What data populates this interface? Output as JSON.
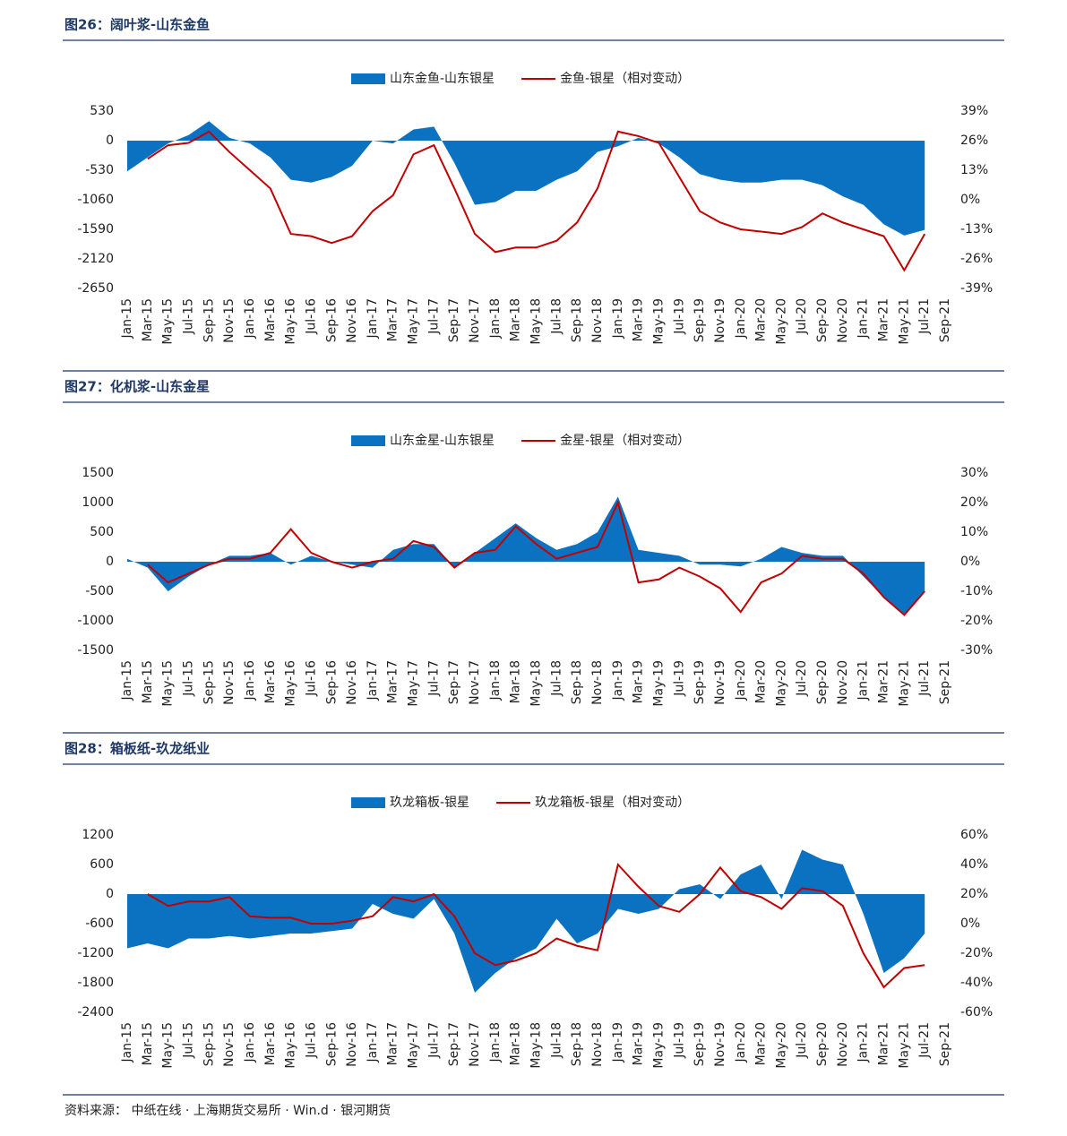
{
  "chart_data": [
    {
      "type": "combo",
      "title": "图26：阔叶浆-山东金鱼",
      "categories": [
        "Jan-15",
        "Mar-15",
        "May-15",
        "Jul-15",
        "Sep-15",
        "Nov-15",
        "Jan-16",
        "Mar-16",
        "May-16",
        "Jul-16",
        "Sep-16",
        "Nov-16",
        "Jan-17",
        "Mar-17",
        "May-17",
        "Jul-17",
        "Sep-17",
        "Nov-17",
        "Jan-18",
        "Mar-18",
        "May-18",
        "Jul-18",
        "Sep-18",
        "Nov-18",
        "Jan-19",
        "Mar-19",
        "May-19",
        "Jul-19",
        "Sep-19",
        "Nov-19",
        "Jan-20",
        "Mar-20",
        "May-20",
        "Jul-20",
        "Sep-20",
        "Nov-20",
        "Jan-21",
        "Mar-21",
        "May-21",
        "Jul-21",
        "Sep-21"
      ],
      "series": [
        {
          "name": "山东金鱼-山东银星",
          "type": "area",
          "color": "#0b72c2",
          "values": [
            -550,
            -300,
            -50,
            100,
            350,
            50,
            -50,
            -300,
            -700,
            -750,
            -650,
            -450,
            0,
            -50,
            200,
            250,
            -400,
            -1150,
            -1100,
            -900,
            -900,
            -700,
            -550,
            -200,
            -100,
            50,
            -50,
            -300,
            -600,
            -700,
            -750,
            -750,
            -700,
            -700,
            -800,
            -1000,
            -1150,
            -1500,
            -1700,
            -1600,
            null
          ]
        },
        {
          "name": "金鱼-银星（相对变动）",
          "type": "line",
          "axis": "y2",
          "color": "#c00000",
          "values": [
            null,
            18,
            24,
            25,
            30,
            21,
            13,
            5,
            -15,
            -16,
            -19,
            -16,
            -5,
            2,
            20,
            24,
            5,
            -15,
            -23,
            -21,
            -21,
            -18,
            -10,
            5,
            30,
            28,
            25,
            10,
            -5,
            -10,
            -13,
            -14,
            -15,
            -12,
            -6,
            -10,
            -13,
            -16,
            -31,
            -15,
            null
          ]
        }
      ],
      "ylim": [
        -2650,
        530
      ],
      "yticks": [
        530,
        0,
        -530,
        -1060,
        -1590,
        -2120,
        -2650
      ],
      "y2lim": [
        -39,
        39
      ],
      "y2ticks": [
        {
          "value": 39,
          "label": "39%"
        },
        {
          "value": 26,
          "label": "26%"
        },
        {
          "value": 13,
          "label": "13%"
        },
        {
          "value": 0,
          "label": "0%"
        },
        {
          "value": -13,
          "label": "-13%"
        },
        {
          "value": -26,
          "label": "-26%"
        },
        {
          "value": -39,
          "label": "-39%"
        }
      ]
    },
    {
      "type": "combo",
      "title": "图27：化机浆-山东金星",
      "categories": [
        "Jan-15",
        "Mar-15",
        "May-15",
        "Jul-15",
        "Sep-15",
        "Nov-15",
        "Jan-16",
        "Mar-16",
        "May-16",
        "Jul-16",
        "Sep-16",
        "Nov-16",
        "Jan-17",
        "Mar-17",
        "May-17",
        "Jul-17",
        "Sep-17",
        "Nov-17",
        "Jan-18",
        "Mar-18",
        "May-18",
        "Jul-18",
        "Sep-18",
        "Nov-18",
        "Jan-19",
        "Mar-19",
        "May-19",
        "Jul-19",
        "Sep-19",
        "Nov-19",
        "Jan-20",
        "Mar-20",
        "May-20",
        "Jul-20",
        "Sep-20",
        "Nov-20",
        "Jan-21",
        "Mar-21",
        "May-21",
        "Jul-21",
        "Sep-21"
      ],
      "series": [
        {
          "name": "山东金星-山东银星",
          "type": "area",
          "color": "#0b72c2",
          "values": [
            50,
            -100,
            -500,
            -250,
            -50,
            100,
            100,
            150,
            -50,
            100,
            0,
            -50,
            -100,
            200,
            300,
            300,
            -100,
            150,
            400,
            650,
            400,
            200,
            300,
            500,
            1100,
            200,
            150,
            100,
            -50,
            -50,
            -80,
            50,
            250,
            150,
            100,
            100,
            -250,
            -600,
            -900,
            -500,
            null
          ]
        },
        {
          "name": "金星-银星（相对变动）",
          "type": "line",
          "axis": "y2",
          "color": "#c00000",
          "values": [
            null,
            -1,
            -7,
            -4,
            -1,
            1,
            1,
            3,
            11,
            3,
            0,
            -2,
            0,
            1,
            7,
            5,
            -2,
            3,
            4,
            12,
            6,
            1,
            3,
            5,
            20,
            -7,
            -6,
            -2,
            -5,
            -9,
            -17,
            -7,
            -4,
            2,
            1,
            1,
            -4,
            -12,
            -18,
            -10,
            null
          ]
        }
      ],
      "ylim": [
        -1500,
        1500
      ],
      "yticks": [
        1500,
        1000,
        500,
        0,
        -500,
        -1000,
        -1500
      ],
      "y2lim": [
        -30,
        30
      ],
      "y2ticks": [
        {
          "value": 30,
          "label": "30%"
        },
        {
          "value": 20,
          "label": "20%"
        },
        {
          "value": 10,
          "label": "10%"
        },
        {
          "value": 0,
          "label": "0%"
        },
        {
          "value": -10,
          "label": "-10%"
        },
        {
          "value": -20,
          "label": "-20%"
        },
        {
          "value": -30,
          "label": "-30%"
        }
      ]
    },
    {
      "type": "combo",
      "title": "图28：箱板纸-玖龙纸业",
      "categories": [
        "Jan-15",
        "Mar-15",
        "May-15",
        "Jul-15",
        "Sep-15",
        "Nov-15",
        "Jan-16",
        "Mar-16",
        "May-16",
        "Jul-16",
        "Sep-16",
        "Nov-16",
        "Jan-17",
        "Mar-17",
        "May-17",
        "Jul-17",
        "Sep-17",
        "Nov-17",
        "Jan-18",
        "Mar-18",
        "May-18",
        "Jul-18",
        "Sep-18",
        "Nov-18",
        "Jan-19",
        "Mar-19",
        "May-19",
        "Jul-19",
        "Sep-19",
        "Nov-19",
        "Jan-20",
        "Mar-20",
        "May-20",
        "Jul-20",
        "Sep-20",
        "Nov-20",
        "Jan-21",
        "Mar-21",
        "May-21",
        "Jul-21",
        "Sep-21"
      ],
      "series": [
        {
          "name": "玖龙箱板-银星",
          "type": "area",
          "color": "#0b72c2",
          "values": [
            -1100,
            -1000,
            -1100,
            -900,
            -900,
            -850,
            -900,
            -850,
            -800,
            -800,
            -750,
            -700,
            -200,
            -400,
            -500,
            -100,
            -800,
            -2000,
            -1600,
            -1300,
            -1100,
            -500,
            -1000,
            -800,
            -300,
            -400,
            -300,
            100,
            200,
            -100,
            400,
            600,
            -100,
            900,
            700,
            600,
            -400,
            -1600,
            -1300,
            -800,
            null
          ]
        },
        {
          "name": "玖龙箱板-银星（相对变动）",
          "type": "line",
          "axis": "y2",
          "color": "#c00000",
          "values": [
            null,
            20,
            12,
            15,
            15,
            18,
            5,
            4,
            4,
            0,
            0,
            2,
            5,
            18,
            15,
            20,
            5,
            -20,
            -28,
            -25,
            -20,
            -10,
            -15,
            -18,
            40,
            25,
            12,
            8,
            20,
            38,
            22,
            18,
            10,
            24,
            22,
            12,
            -20,
            -43,
            -30,
            -28,
            null
          ]
        }
      ],
      "ylim": [
        -2400,
        1200
      ],
      "yticks": [
        1200,
        600,
        0,
        -600,
        -1200,
        -1800,
        -2400
      ],
      "y2lim": [
        -60,
        60
      ],
      "y2ticks": [
        {
          "value": 60,
          "label": "60%"
        },
        {
          "value": 40,
          "label": "40%"
        },
        {
          "value": 20,
          "label": "20%"
        },
        {
          "value": 0,
          "label": "0%"
        },
        {
          "value": -20,
          "label": "-20%"
        },
        {
          "value": -40,
          "label": "-40%"
        },
        {
          "value": -60,
          "label": "-60%"
        }
      ]
    }
  ],
  "source": "资料来源：  中纸在线 · 上海期货交易所 · Win.d · 银河期货"
}
